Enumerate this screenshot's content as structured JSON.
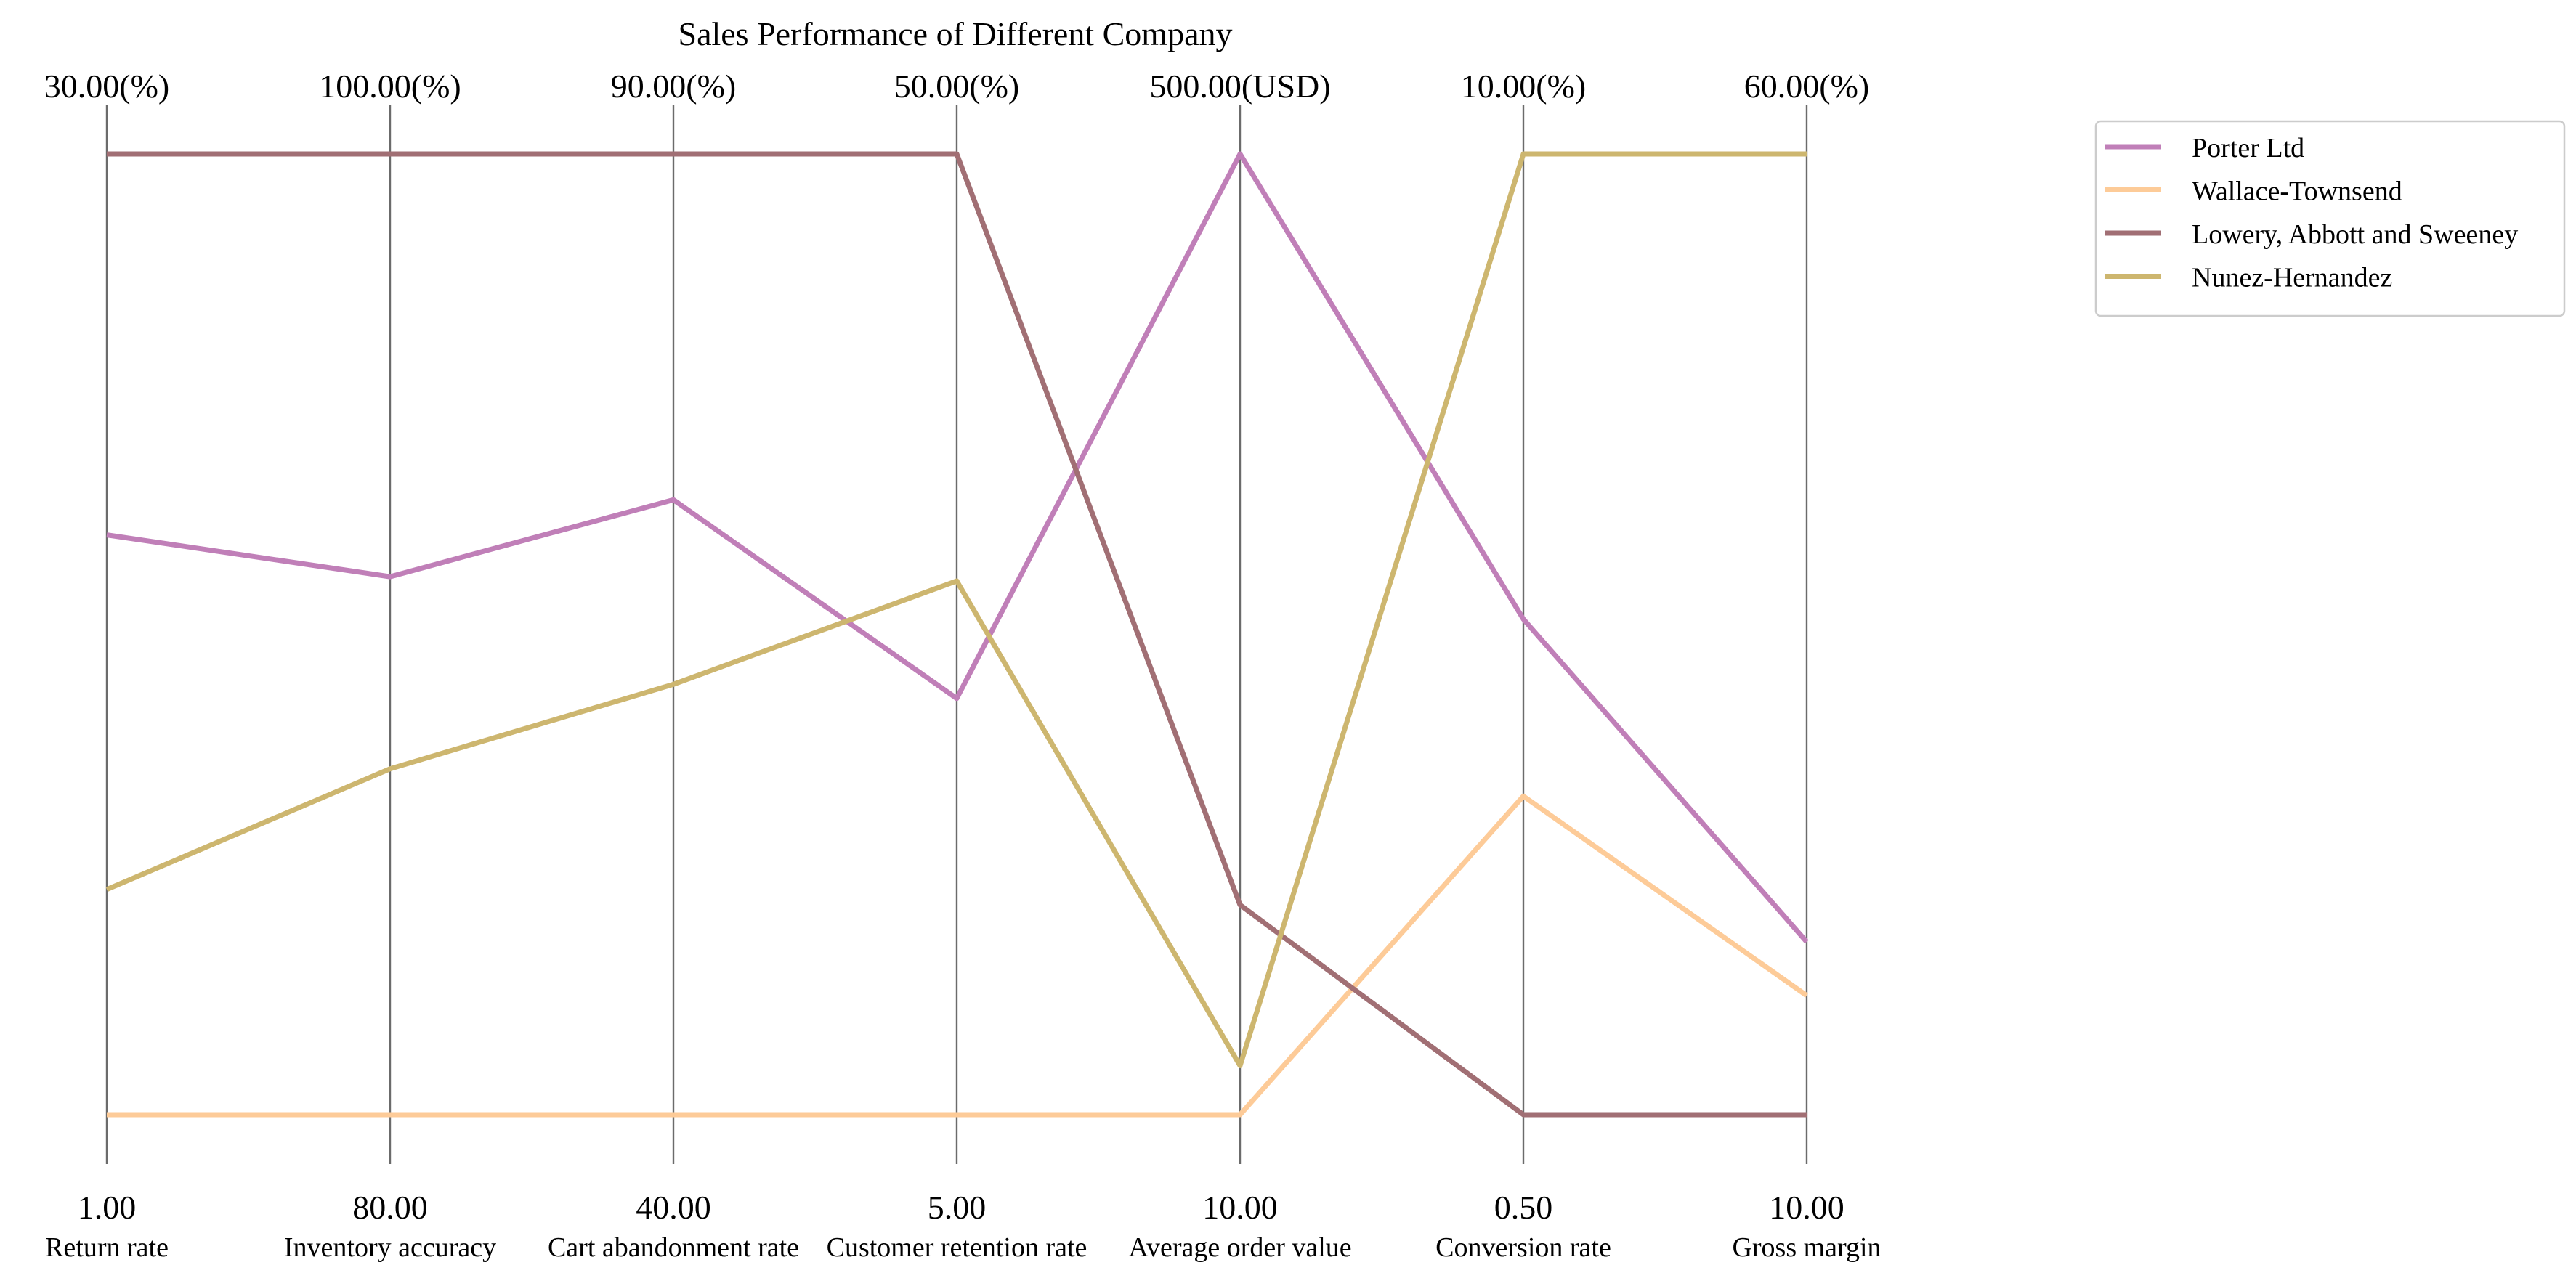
{
  "chart_data": {
    "type": "parallel-coordinates",
    "title": "Sales Performance of Different Company",
    "legend_position": "upper-right-outside",
    "grid": false,
    "axes": [
      {
        "label": "Return rate",
        "min": 1.0,
        "max": 30.0,
        "min_label": "1.00",
        "max_label": "30.00(%)"
      },
      {
        "label": "Inventory accuracy",
        "min": 80.0,
        "max": 100.0,
        "min_label": "80.00",
        "max_label": "100.00(%)"
      },
      {
        "label": "Cart abandonment rate",
        "min": 40.0,
        "max": 90.0,
        "min_label": "40.00",
        "max_label": "90.00(%)"
      },
      {
        "label": "Customer retention rate",
        "min": 5.0,
        "max": 50.0,
        "min_label": "5.00",
        "max_label": "50.00(%)"
      },
      {
        "label": "Average order value",
        "min": 10.0,
        "max": 500.0,
        "min_label": "10.00",
        "max_label": "500.00(USD)"
      },
      {
        "label": "Conversion rate",
        "min": 0.5,
        "max": 10.0,
        "min_label": "0.50",
        "max_label": "10.00(%)"
      },
      {
        "label": "Gross margin",
        "min": 10.0,
        "max": 60.0,
        "min_label": "10.00",
        "max_label": "60.00(%)"
      }
    ],
    "series": [
      {
        "name": "Porter Ltd",
        "color": "#c07fb8",
        "values": [
          18.5,
          91.2,
          72.0,
          24.5,
          500.0,
          5.4,
          19.0
        ]
      },
      {
        "name": "Wallace-Townsend",
        "color": "#fdcb98",
        "values": [
          1.0,
          80.0,
          40.0,
          5.0,
          10.0,
          3.65,
          16.2
        ]
      },
      {
        "name": "Lowery, Abbott and Sweeney",
        "color": "#a16f74",
        "values": [
          30.0,
          100.0,
          90.0,
          50.0,
          117.0,
          0.5,
          10.0
        ]
      },
      {
        "name": "Nunez-Hernandez",
        "color": "#cdb66f",
        "values": [
          7.8,
          87.2,
          62.4,
          30.0,
          35.0,
          10.0,
          60.0
        ]
      }
    ]
  }
}
